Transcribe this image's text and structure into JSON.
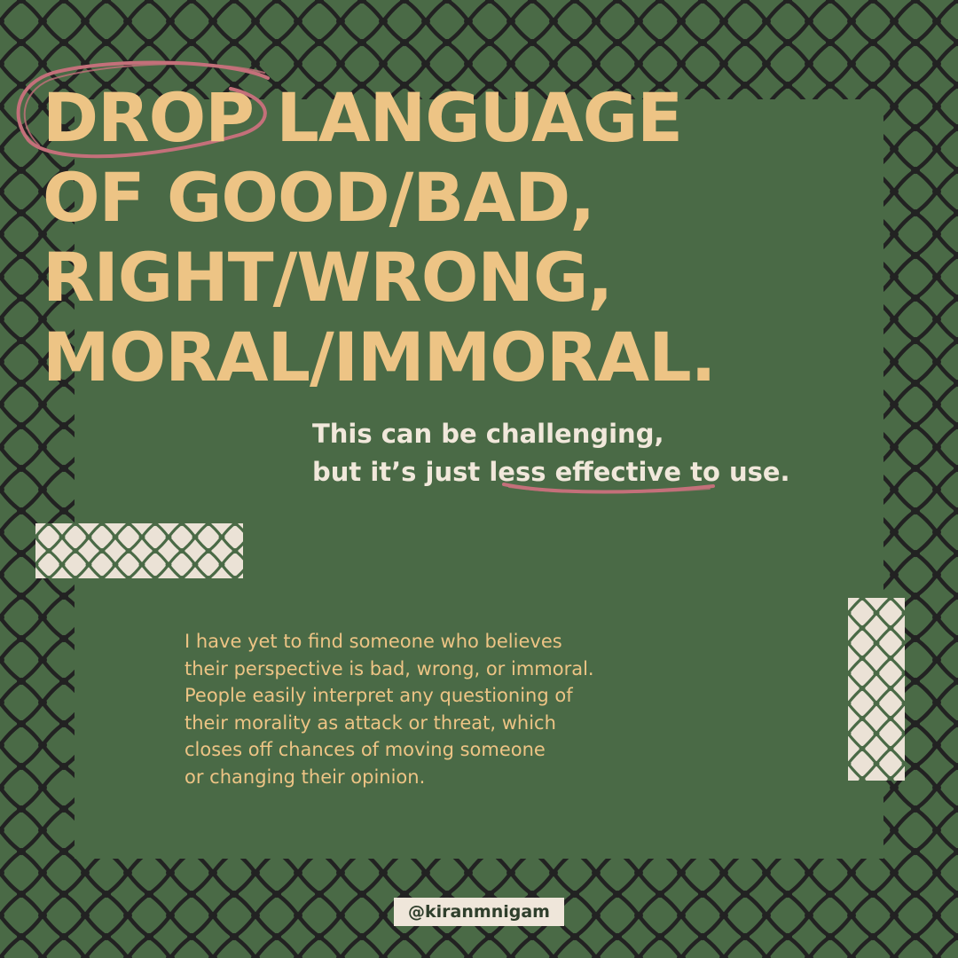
{
  "colors": {
    "background": "#4a6a46",
    "net_line": "#222222",
    "headline": "#edc485",
    "subtitle": "#f1e8db",
    "accent_scribble": "#c4707a",
    "strip_bg": "#ebe2d6"
  },
  "headline": {
    "lines": [
      "DROP LANGUAGE",
      "OF GOOD/BAD,",
      "RIGHT/WRONG,",
      "MORAL/IMMORAL."
    ]
  },
  "subtitle": {
    "line1": "This can be challenging,",
    "line2_before": "but it’s just ",
    "line2_emphasis": "less effective",
    "line2_after": " to use."
  },
  "body": {
    "lines": [
      "I have yet to find someone who believes",
      "their perspective is bad, wrong, or immoral.",
      "People easily interpret any questioning of",
      "their morality as attack or threat, which",
      "closes off chances of moving someone",
      "or changing their opinion."
    ]
  },
  "handle": "@kiranmnigam",
  "decor": {
    "background_pattern": "keffiyeh-net-pattern",
    "scribble_circle": "hand-drawn-circle",
    "scribble_underline": "hand-drawn-underline"
  }
}
